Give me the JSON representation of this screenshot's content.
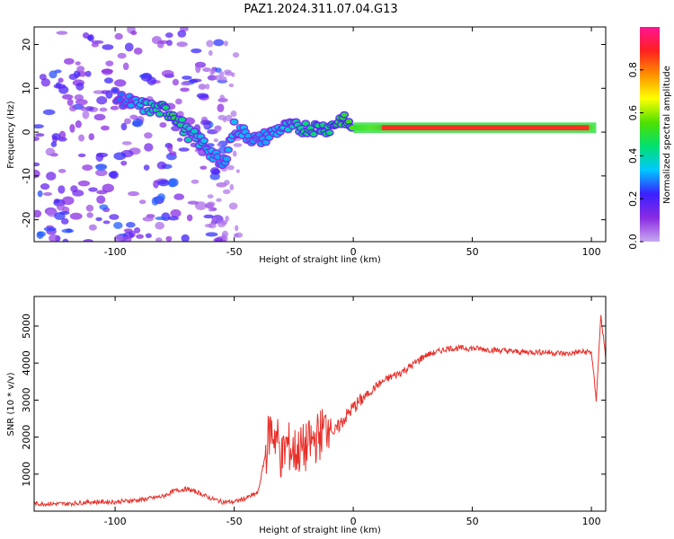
{
  "title": "PAZ1.2024.311.07.04.G13",
  "colors": {
    "snr_line": "#e8302a",
    "axes": "#000000",
    "background": "#ffffff"
  },
  "chart_data": [
    {
      "type": "heatmap",
      "name": "spectrogram",
      "xlabel": "Height of straight line (km)",
      "ylabel": "Frequency (Hz)",
      "xlim": [
        -134,
        106
      ],
      "ylim": [
        -25,
        24
      ],
      "xticks": [
        -100,
        -50,
        0,
        50,
        100
      ],
      "yticks": [
        -20,
        -10,
        0,
        10,
        20
      ],
      "colorbar": {
        "label": "Normalized spectral amplitude",
        "range": [
          0,
          1
        ],
        "ticks": [
          0.0,
          0.2,
          0.4,
          0.6,
          0.8
        ],
        "colormap": [
          "#c8a8f0",
          "#8a2be2",
          "#3a20ff",
          "#00c8ff",
          "#00e070",
          "#50e000",
          "#ffff00",
          "#ff9000",
          "#ff2020",
          "#ff1493"
        ]
      },
      "ridge": [
        {
          "x": -100,
          "y": 8,
          "v": 0.25
        },
        {
          "x": -90,
          "y": 6,
          "v": 0.35
        },
        {
          "x": -80,
          "y": 5,
          "v": 0.45
        },
        {
          "x": -75,
          "y": 4,
          "v": 0.5
        },
        {
          "x": -70,
          "y": 0,
          "v": 0.4
        },
        {
          "x": -62,
          "y": -3,
          "v": 0.35
        },
        {
          "x": -55,
          "y": -8,
          "v": 0.3
        },
        {
          "x": -50,
          "y": 1,
          "v": 0.35
        },
        {
          "x": -40,
          "y": -2,
          "v": 0.3
        },
        {
          "x": -30,
          "y": 1,
          "v": 0.35
        },
        {
          "x": -20,
          "y": 1,
          "v": 0.45
        },
        {
          "x": -10,
          "y": 1,
          "v": 0.45
        },
        {
          "x": -5,
          "y": 3,
          "v": 0.5
        },
        {
          "x": 0,
          "y": 1,
          "v": 0.55
        },
        {
          "x": 10,
          "y": 1,
          "v": 0.7
        },
        {
          "x": 15,
          "y": 1,
          "v": 0.9
        },
        {
          "x": 50,
          "y": 1,
          "v": 0.95
        },
        {
          "x": 90,
          "y": 1,
          "v": 0.95
        },
        {
          "x": 100,
          "y": 1,
          "v": 0.7
        }
      ]
    },
    {
      "type": "line",
      "name": "snr",
      "xlabel": "Height of straight line (km)",
      "ylabel": "SNR (10 * v/v)",
      "xlim": [
        -134,
        106
      ],
      "ylim": [
        0,
        5800
      ],
      "xticks": [
        -100,
        -50,
        0,
        50,
        100
      ],
      "yticks": [
        1000,
        2000,
        3000,
        4000,
        5000
      ],
      "x": [
        -134,
        -120,
        -110,
        -100,
        -90,
        -80,
        -75,
        -70,
        -65,
        -60,
        -55,
        -50,
        -45,
        -40,
        -37,
        -35,
        -32,
        -30,
        -28,
        -25,
        -20,
        -15,
        -10,
        -8,
        -5,
        0,
        5,
        10,
        15,
        20,
        25,
        30,
        40,
        50,
        60,
        70,
        80,
        90,
        95,
        100,
        102,
        104,
        106
      ],
      "y": [
        200,
        200,
        250,
        250,
        300,
        400,
        550,
        600,
        500,
        350,
        250,
        250,
        350,
        500,
        1500,
        2200,
        2000,
        1400,
        1800,
        1600,
        1700,
        2000,
        2400,
        2100,
        2400,
        2800,
        3100,
        3400,
        3600,
        3750,
        3950,
        4200,
        4400,
        4400,
        4350,
        4300,
        4300,
        4250,
        4300,
        4300,
        3000,
        5300,
        4100
      ]
    }
  ]
}
